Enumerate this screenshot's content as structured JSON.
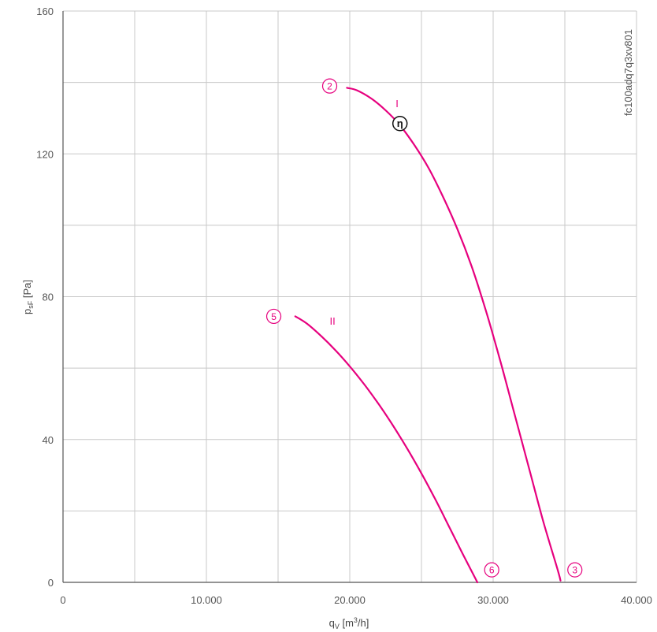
{
  "chart_data": {
    "type": "line",
    "xlabel": "q",
    "xlabel_sub": "V",
    "xlabel_unit_pre": " [m",
    "xlabel_unit_sup": "3",
    "xlabel_unit_post": "/h]",
    "ylabel": "p",
    "ylabel_sub": "sF",
    "ylabel_unit": " [Pa]",
    "xlim": [
      0,
      40000
    ],
    "ylim": [
      0,
      160
    ],
    "x_ticks": [
      0,
      10000,
      20000,
      30000,
      40000
    ],
    "x_tick_labels": [
      "0",
      "10.000",
      "20.000",
      "30.000",
      "40.000"
    ],
    "y_ticks": [
      0,
      40,
      80,
      120,
      160
    ],
    "y_tick_labels": [
      "0",
      "40",
      "80",
      "120",
      "160"
    ],
    "x_grid": [
      5000,
      10000,
      15000,
      20000,
      25000,
      30000,
      35000,
      40000
    ],
    "y_grid": [
      20,
      40,
      60,
      80,
      100,
      120,
      140,
      160
    ],
    "grid": true,
    "curve_color": "#e6007e",
    "series": [
      {
        "name": "I",
        "start_marker": "2",
        "end_marker": "3",
        "x": [
          19800,
          20500,
          21500,
          22500,
          23500,
          24500,
          25500,
          26500,
          27500,
          28500,
          29500,
          30500,
          31500,
          32500,
          33500,
          34500,
          34700
        ],
        "y": [
          138.5,
          137.8,
          135.5,
          132.2,
          128.0,
          122.5,
          116.0,
          108.0,
          99.0,
          88.5,
          76.0,
          62.0,
          47.0,
          32.0,
          17.0,
          3.5,
          0.5
        ]
      },
      {
        "name": "II",
        "start_marker": "5",
        "end_marker": "6",
        "x": [
          16200,
          17000,
          18000,
          19000,
          20000,
          21000,
          22000,
          23000,
          24000,
          25000,
          26000,
          27000,
          28000,
          28900
        ],
        "y": [
          74.5,
          72.5,
          69.0,
          65.0,
          60.5,
          55.5,
          50.0,
          44.0,
          37.5,
          30.5,
          23.0,
          15.0,
          7.0,
          0
        ]
      }
    ],
    "annotations": [
      {
        "text": "2",
        "x": 18600,
        "y": 139
      },
      {
        "text": "I",
        "x": 23300,
        "y": 134
      },
      {
        "text": "η",
        "x": 23500,
        "y": 128.5
      },
      {
        "text": "3",
        "x": 35700,
        "y": 3.5
      },
      {
        "text": "5",
        "x": 14700,
        "y": 74.5
      },
      {
        "text": "II",
        "x": 18800,
        "y": 73
      },
      {
        "text": "6",
        "x": 29900,
        "y": 3.5
      }
    ],
    "side_code": "fc100adq7q3xv801"
  }
}
